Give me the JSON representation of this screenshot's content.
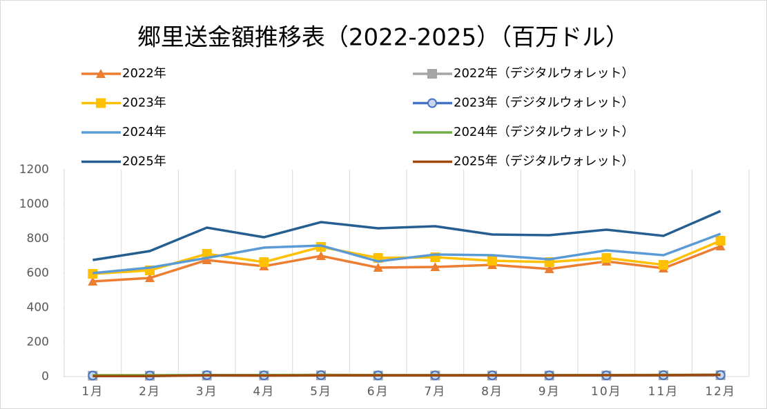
{
  "chart_data": {
    "type": "line",
    "title": "郷里送金額推移表（2022-2025）（百万ドル）",
    "categories": [
      "1月",
      "2月",
      "3月",
      "4月",
      "5月",
      "6月",
      "7月",
      "8月",
      "9月",
      "10月",
      "11月",
      "12月"
    ],
    "ylim": [
      0,
      1200
    ],
    "yticks": [
      0,
      200,
      400,
      600,
      800,
      1000,
      1200
    ],
    "series": [
      {
        "name": "2022年",
        "color": "#ed7d31",
        "marker": "triangle",
        "values": [
          552,
          572,
          676,
          640,
          700,
          632,
          636,
          648,
          624,
          668,
          628,
          756
        ]
      },
      {
        "name": "2022年（デジタルウォレット）",
        "color": "#a5a5a5",
        "marker": "square",
        "values": [
          5,
          5,
          6,
          6,
          7,
          6,
          6,
          6,
          6,
          6,
          7,
          8
        ]
      },
      {
        "name": "2023年",
        "color": "#ffc000",
        "marker": "square",
        "values": [
          596,
          616,
          712,
          664,
          752,
          688,
          692,
          672,
          664,
          688,
          648,
          788
        ]
      },
      {
        "name": "2023年（デジタルウォレット）",
        "color": "#4472c4",
        "marker": "circle",
        "values": [
          6,
          6,
          8,
          7,
          8,
          7,
          7,
          7,
          7,
          7,
          8,
          9
        ]
      },
      {
        "name": "2024年",
        "color": "#5b9bd5",
        "values": [
          600,
          632,
          688,
          748,
          760,
          668,
          708,
          704,
          680,
          732,
          704,
          828
        ]
      },
      {
        "name": "2024年（デジタルウォレット）",
        "color": "#70ad47",
        "values": [
          8,
          8,
          9,
          9,
          10,
          9,
          9,
          9,
          9,
          9,
          10,
          11
        ]
      },
      {
        "name": "2025年",
        "color": "#255e91",
        "values": [
          676,
          728,
          864,
          808,
          896,
          860,
          872,
          824,
          820,
          852,
          816,
          960
        ]
      },
      {
        "name": "2025年（デジタルウォレット）",
        "color": "#9e480e",
        "values": [
          3,
          3,
          7,
          6,
          7,
          7,
          7,
          7,
          7,
          8,
          8,
          10
        ]
      }
    ]
  }
}
